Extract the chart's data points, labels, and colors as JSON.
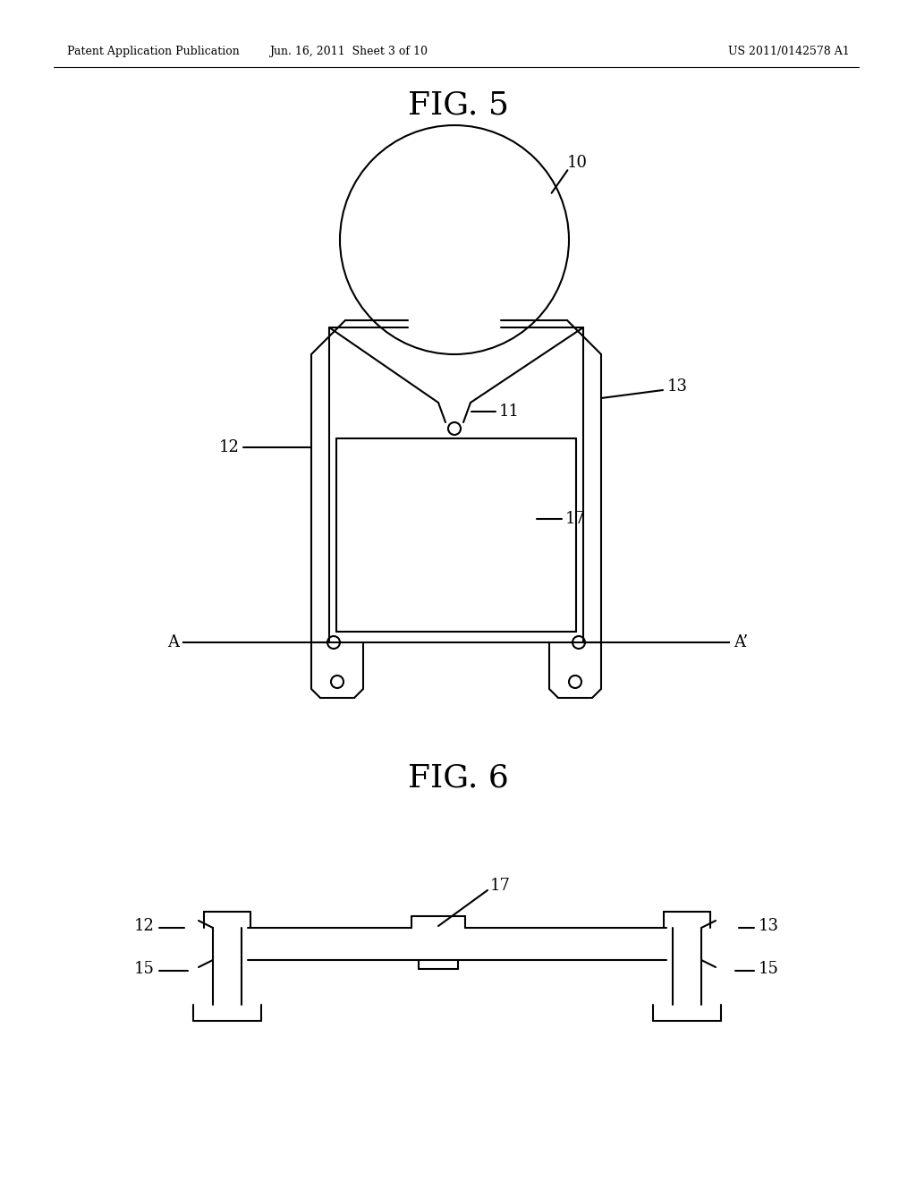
{
  "bg_color": "#ffffff",
  "line_color": "#000000",
  "header_left": "Patent Application Publication",
  "header_mid": "Jun. 16, 2011  Sheet 3 of 10",
  "header_right": "US 2011/0142578 A1",
  "fig5_title": "FIG. 5",
  "fig6_title": "FIG. 6",
  "label_10": "10",
  "label_11": "11",
  "label_12": "12",
  "label_13": "13",
  "label_15": "15",
  "label_17": "17",
  "label_A": "A",
  "label_Aprime": "A’"
}
